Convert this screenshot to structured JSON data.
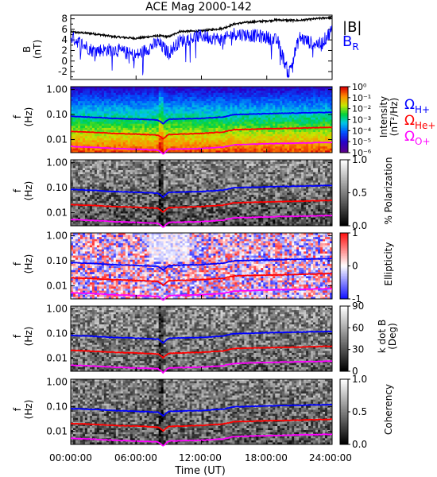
{
  "title": "ACE Mag 2000-142",
  "top_panel": {
    "ylabel": "B",
    "yunit": "(nT)",
    "yticks": [
      "8",
      "6",
      "4",
      "2",
      "0",
      "-2"
    ],
    "legend": [
      {
        "label": "|B|",
        "color": "#000000"
      },
      {
        "label": "B",
        "sub": "R",
        "color": "#0000ff"
      }
    ]
  },
  "freq_ylabel": "f",
  "freq_yunit": "(Hz)",
  "freq_ticks": [
    "1.00",
    "0.10",
    "0.01"
  ],
  "panels": [
    {
      "id": "intensity",
      "type": "spectrogram",
      "colorscale": "rainbow",
      "cbar_ticks": [
        "10⁰",
        "10⁻¹",
        "10⁻²",
        "10⁻³",
        "10⁻⁴",
        "10⁻⁵",
        "10⁻⁶"
      ],
      "cbar_label": "Intensity",
      "cbar_unit": "(nT²/Hz)",
      "gyro_legend": [
        {
          "label": "Ω",
          "sub": "H+",
          "color": "#0000ff"
        },
        {
          "label": "Ω",
          "sub": "He+",
          "color": "#ff0000"
        },
        {
          "label": "Ω",
          "sub": "O+",
          "color": "#ff00ff"
        }
      ]
    },
    {
      "id": "polarization",
      "type": "spectrogram",
      "colorscale": "gray",
      "cbar_ticks": [
        "1.0",
        "0.5",
        "0.0"
      ],
      "cbar_label": "% Polarization"
    },
    {
      "id": "ellipticity",
      "type": "spectrogram",
      "colorscale": "bwr",
      "cbar_ticks": [
        "1",
        "0",
        "-1"
      ],
      "cbar_label": "Ellipticity"
    },
    {
      "id": "kdotb",
      "type": "spectrogram",
      "colorscale": "gray",
      "cbar_ticks": [
        "90",
        "60",
        "30",
        "0"
      ],
      "cbar_label": "k dot B",
      "cbar_unit": "(Deg)"
    },
    {
      "id": "coherency",
      "type": "spectrogram",
      "colorscale": "gray",
      "cbar_ticks": [
        "1.0",
        "0.5",
        "0.0"
      ],
      "cbar_label": "Coherency"
    }
  ],
  "xaxis": {
    "ticks": [
      "00:00:00",
      "06:00:00",
      "12:00:00",
      "18:00:00",
      "24:00:00"
    ],
    "label": "Time (UT)"
  },
  "chart_data": {
    "type": "line",
    "title": "ACE Mag 2000-142",
    "x_range_hours": [
      0,
      24
    ],
    "magnetic_field": {
      "ylabel": "B (nT)",
      "ylim": [
        -3.5,
        8.7
      ],
      "x_hours": [
        0,
        2,
        4,
        6,
        8,
        9,
        10,
        12,
        14,
        15,
        16,
        18,
        19,
        20,
        21,
        22,
        23,
        24
      ],
      "series": [
        {
          "name": "|B|",
          "color": "#000000",
          "values": [
            5.5,
            5.2,
            4.6,
            4.3,
            4.8,
            4.6,
            5.6,
            5.7,
            6.2,
            7.0,
            7.3,
            7.6,
            7.8,
            7.7,
            7.7,
            7.9,
            8.1,
            8.3
          ]
        },
        {
          "name": "B_R",
          "color": "#0000ff",
          "values": [
            4.6,
            2.0,
            2.2,
            1.0,
            3.5,
            1.5,
            3.8,
            4.8,
            4.0,
            5.2,
            5.0,
            4.5,
            3.8,
            -2.5,
            4.5,
            3.5,
            3.2,
            6.0
          ]
        }
      ]
    },
    "gyrofrequencies": {
      "ylabel": "f (Hz)",
      "ylim": [
        0.003,
        1.3
      ],
      "yscale": "log",
      "x_hours": [
        0,
        2,
        4,
        6,
        8,
        8.5,
        9,
        12,
        14,
        15,
        16,
        18,
        20,
        22,
        24
      ],
      "series": [
        {
          "name": "ΩH+",
          "color": "#0000ff",
          "values": [
            0.085,
            0.078,
            0.07,
            0.066,
            0.06,
            0.042,
            0.065,
            0.07,
            0.08,
            0.1,
            0.102,
            0.108,
            0.113,
            0.118,
            0.123
          ]
        },
        {
          "name": "ΩHe+",
          "color": "#ff0000",
          "values": [
            0.021,
            0.0195,
            0.0175,
            0.0165,
            0.015,
            0.0105,
            0.016,
            0.0175,
            0.02,
            0.025,
            0.0255,
            0.027,
            0.028,
            0.0295,
            0.031
          ]
        },
        {
          "name": "ΩO+",
          "color": "#ff00ff",
          "values": [
            0.0053,
            0.0049,
            0.0044,
            0.0041,
            0.0038,
            0.0026,
            0.0041,
            0.0044,
            0.005,
            0.0062,
            0.0064,
            0.0068,
            0.0071,
            0.0074,
            0.0077
          ]
        }
      ]
    }
  }
}
